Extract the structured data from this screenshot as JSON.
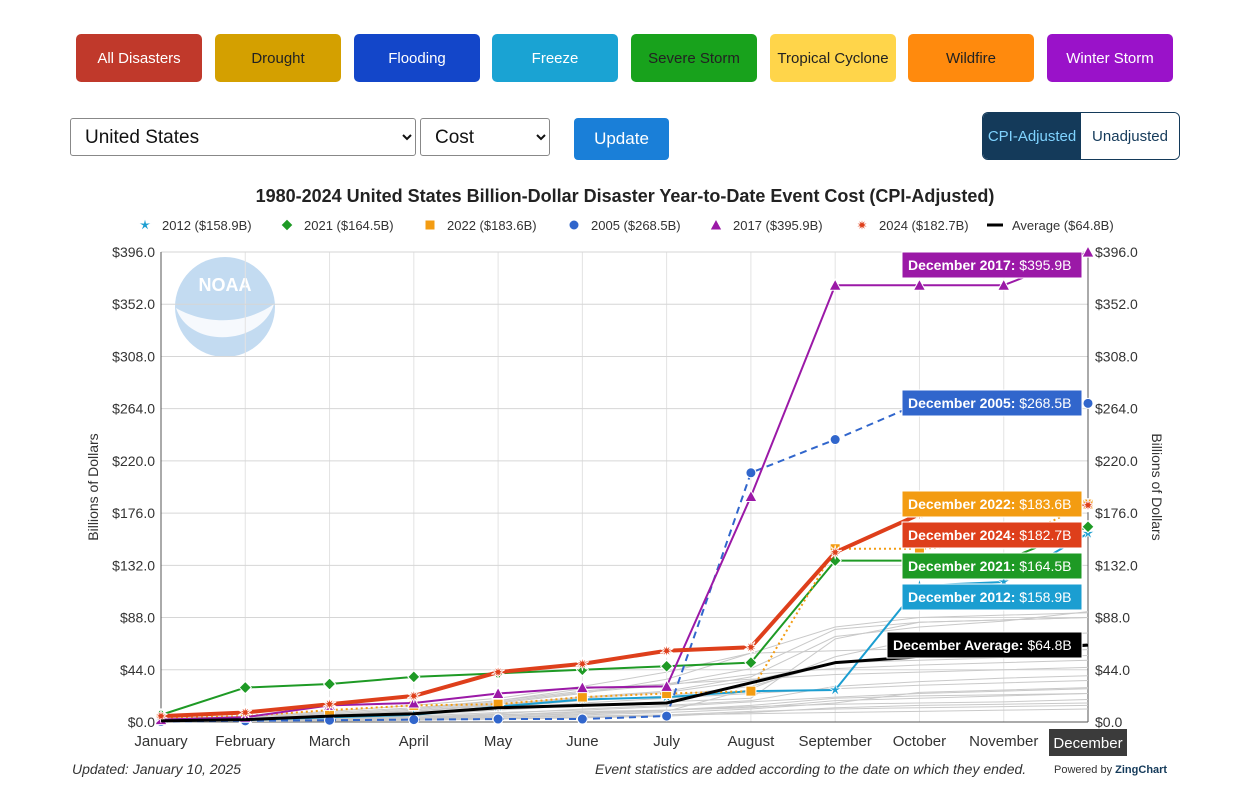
{
  "filters": [
    {
      "label": "All Disasters",
      "color": "#c0392b"
    },
    {
      "label": "Drought",
      "color": "#d4a000"
    },
    {
      "label": "Flooding",
      "color": "#1346c9"
    },
    {
      "label": "Freeze",
      "color": "#1aa3d3"
    },
    {
      "label": "Severe Storm",
      "color": "#18a21c"
    },
    {
      "label": "Tropical Cyclone",
      "color": "#ffd54a"
    },
    {
      "label": "Wildfire",
      "color": "#ff8a0d"
    },
    {
      "label": "Winter Storm",
      "color": "#9a12c9"
    }
  ],
  "controls": {
    "region": "United States",
    "metric": "Cost",
    "update_label": "Update",
    "cpi_label": "CPI-Adjusted",
    "unadjusted_label": "Unadjusted"
  },
  "footer": {
    "updated": "Updated: January 10, 2025",
    "note": "Event statistics are added according to the date on which they ended.",
    "powered_prefix": "Powered by",
    "powered_brand": "ZingChart"
  },
  "chart_data": {
    "type": "line",
    "title": "1980-2024 United States Billion-Dollar Disaster Year-to-Date Event Cost (CPI-Adjusted)",
    "ylabel": "Billions of Dollars",
    "ylim": [
      0,
      396
    ],
    "yticks": [
      "$0.0",
      "$44.0",
      "$88.0",
      "$132.0",
      "$176.0",
      "$220.0",
      "$264.0",
      "$308.0",
      "$352.0",
      "$396.0"
    ],
    "categories": [
      "January",
      "February",
      "March",
      "April",
      "May",
      "June",
      "July",
      "August",
      "September",
      "October",
      "November",
      "December"
    ],
    "highlight_category": "December",
    "logo_text": "NOAA",
    "series": [
      {
        "name": "2012",
        "legend": "2012 ($158.9B)",
        "color": "#1b9ed1",
        "marker": "star",
        "dash": "",
        "width": 2,
        "values": [
          1.0,
          1.5,
          4.0,
          6.0,
          13.0,
          19.0,
          21.0,
          26.0,
          27.0,
          115.0,
          118.0,
          158.9
        ],
        "annotation": {
          "prefix": "December 2012:",
          "value": "$158.9B"
        }
      },
      {
        "name": "2021",
        "legend": "2021 ($164.5B)",
        "color": "#1e9a25",
        "marker": "diamond",
        "dash": "",
        "width": 2,
        "values": [
          6.0,
          29.0,
          32.0,
          38.0,
          41.0,
          44.0,
          47.0,
          50.0,
          136.0,
          136.0,
          136.0,
          164.5
        ],
        "annotation": {
          "prefix": "December 2021:",
          "value": "$164.5B"
        }
      },
      {
        "name": "2022",
        "legend": "2022 ($183.6B)",
        "color": "#f39c12",
        "marker": "square",
        "dash": "2,3",
        "width": 2,
        "values": [
          3.0,
          5.0,
          10.0,
          14.0,
          15.0,
          21.0,
          24.0,
          26.0,
          146.0,
          146.0,
          150.0,
          183.6
        ],
        "annotation": {
          "prefix": "December 2022:",
          "value": "$183.6B"
        }
      },
      {
        "name": "2005",
        "legend": "2005 ($268.5B)",
        "color": "#3166cc",
        "marker": "circle",
        "dash": "7,5",
        "width": 2,
        "values": [
          0.5,
          1.0,
          1.5,
          2.0,
          2.5,
          2.5,
          5.0,
          210.0,
          238.0,
          268.5,
          268.5,
          268.5
        ],
        "annotation": {
          "prefix": "December 2005:",
          "value": "$268.5B"
        }
      },
      {
        "name": "2017",
        "legend": "2017 ($395.9B)",
        "color": "#9b19a7",
        "marker": "triangle",
        "dash": "",
        "width": 2,
        "values": [
          2.0,
          4.0,
          14.0,
          16.0,
          24.0,
          29.0,
          30.0,
          190.0,
          368.0,
          368.0,
          368.0,
          395.9
        ],
        "annotation": {
          "prefix": "December 2017:",
          "value": "$395.9B"
        }
      },
      {
        "name": "2024",
        "legend": "2024 ($182.7B)",
        "color": "#de3f1b",
        "marker": "burst",
        "dash": "",
        "width": 4,
        "values": [
          5.0,
          8.0,
          15.0,
          22.0,
          42.0,
          49.0,
          60.0,
          63.0,
          143.0,
          175.0,
          180.0,
          182.7
        ],
        "annotation": {
          "prefix": "December 2024:",
          "value": "$182.7B"
        }
      },
      {
        "name": "Average",
        "legend": "Average ($64.8B)",
        "color": "#000000",
        "marker": "none",
        "dash": "",
        "width": 3,
        "values": [
          1.0,
          2.0,
          5.0,
          7.0,
          12.0,
          14.0,
          16.0,
          33.0,
          50.0,
          55.0,
          60.0,
          64.8
        ],
        "annotation": {
          "prefix": "December Average:",
          "value": "$64.8B"
        }
      }
    ],
    "background_years": [
      [
        0.5,
        1,
        2,
        3,
        5,
        7,
        9,
        28,
        55,
        70,
        72,
        75
      ],
      [
        0.2,
        0.8,
        1.5,
        2,
        4,
        6,
        8,
        11,
        16,
        25,
        27,
        29
      ],
      [
        1,
        3,
        6,
        9,
        15,
        21,
        26,
        38,
        72,
        80,
        85,
        93
      ],
      [
        0.5,
        1,
        3,
        4,
        6,
        9,
        10,
        13,
        15,
        16,
        17,
        19
      ],
      [
        1,
        2,
        5,
        9,
        16,
        24,
        36,
        58,
        80,
        88,
        90,
        92
      ],
      [
        0.3,
        0.5,
        1,
        3,
        6,
        8,
        10,
        12,
        18,
        20,
        22,
        24
      ],
      [
        2,
        4,
        8,
        12,
        18,
        28,
        32,
        36,
        40,
        42,
        44,
        46
      ],
      [
        0.5,
        1,
        2,
        3,
        4,
        5,
        6,
        7,
        8,
        9,
        10,
        11
      ],
      [
        1,
        2,
        4,
        7,
        12,
        18,
        22,
        30,
        50,
        52,
        54,
        56
      ],
      [
        0.5,
        1.5,
        3,
        5,
        8,
        10,
        13,
        17,
        21,
        24,
        26,
        28
      ],
      [
        3,
        5,
        9,
        14,
        20,
        30,
        42,
        58,
        60,
        62,
        64,
        66
      ],
      [
        0.2,
        0.4,
        0.8,
        1.5,
        2.5,
        3.5,
        5,
        8,
        12,
        14,
        15,
        16
      ],
      [
        1,
        2,
        3,
        6,
        10,
        14,
        17,
        20,
        70,
        84,
        86,
        88
      ],
      [
        0.5,
        1,
        3,
        6,
        11,
        16,
        20,
        24,
        28,
        31,
        33,
        35
      ],
      [
        2,
        3,
        6,
        10,
        17,
        25,
        31,
        40,
        45,
        48,
        50,
        52
      ],
      [
        0.4,
        0.8,
        2,
        3,
        5,
        7,
        10,
        14,
        20,
        22,
        23,
        24
      ],
      [
        1,
        2,
        5,
        9,
        14,
        20,
        25,
        35,
        50,
        57,
        59,
        61
      ],
      [
        0.5,
        1,
        2,
        4,
        7,
        11,
        14,
        18,
        30,
        34,
        37,
        39
      ],
      [
        2,
        4,
        7,
        11,
        18,
        26,
        32,
        45,
        78,
        84,
        86,
        88
      ],
      [
        0.2,
        0.6,
        1,
        2,
        3,
        4,
        6,
        9,
        11,
        12,
        13,
        14
      ]
    ]
  }
}
